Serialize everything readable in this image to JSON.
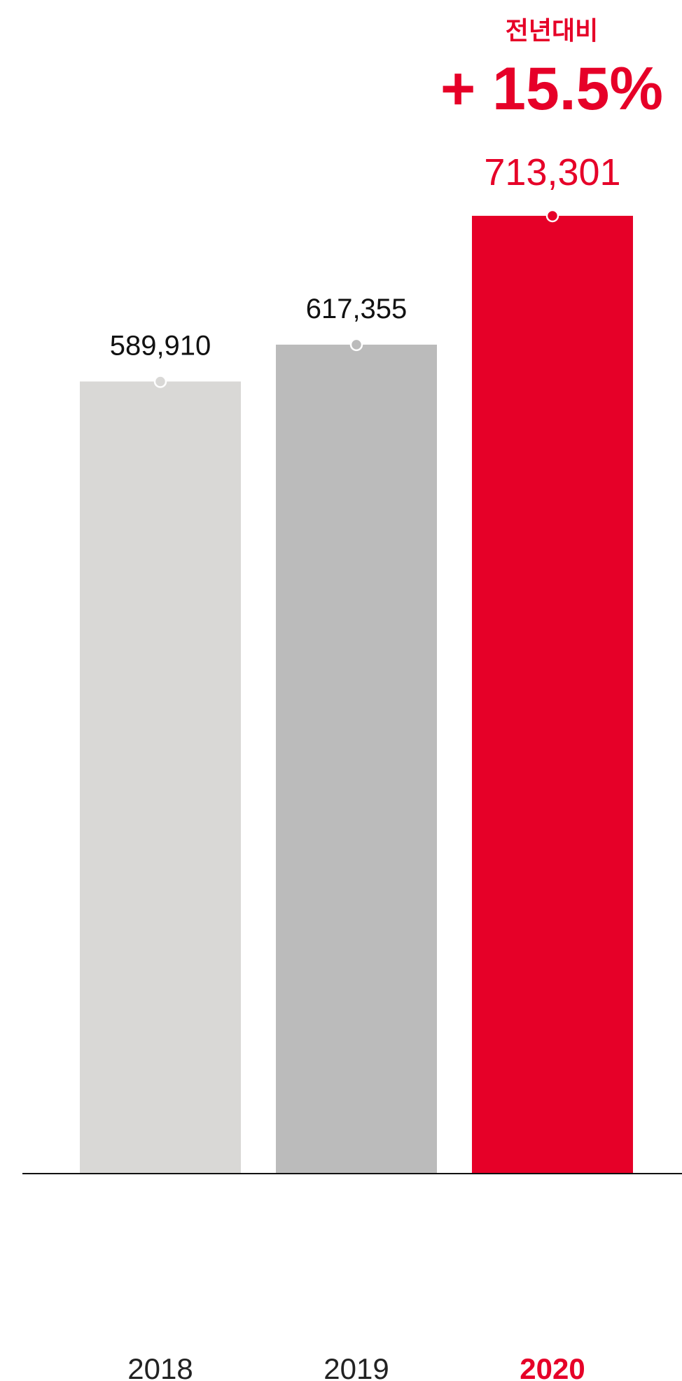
{
  "chart_data": {
    "type": "bar",
    "categories": [
      "2018",
      "2019",
      "2020"
    ],
    "values": [
      589910,
      617355,
      713301
    ],
    "value_labels": [
      "589,910",
      "617,355",
      "713,301"
    ],
    "highlight_index": 2,
    "colors": [
      "#d9d8d6",
      "#bbbbbb",
      "#e60028"
    ],
    "label_colors": [
      "#111111",
      "#111111",
      "#e60028"
    ],
    "marker_colors": [
      "#d9d8d6",
      "#bbbbbb",
      "#e60028"
    ],
    "yoy": {
      "caption": "전년대비",
      "value": "+ 15.5%"
    },
    "accent_color": "#e60028",
    "grid": false,
    "legend": "none"
  }
}
